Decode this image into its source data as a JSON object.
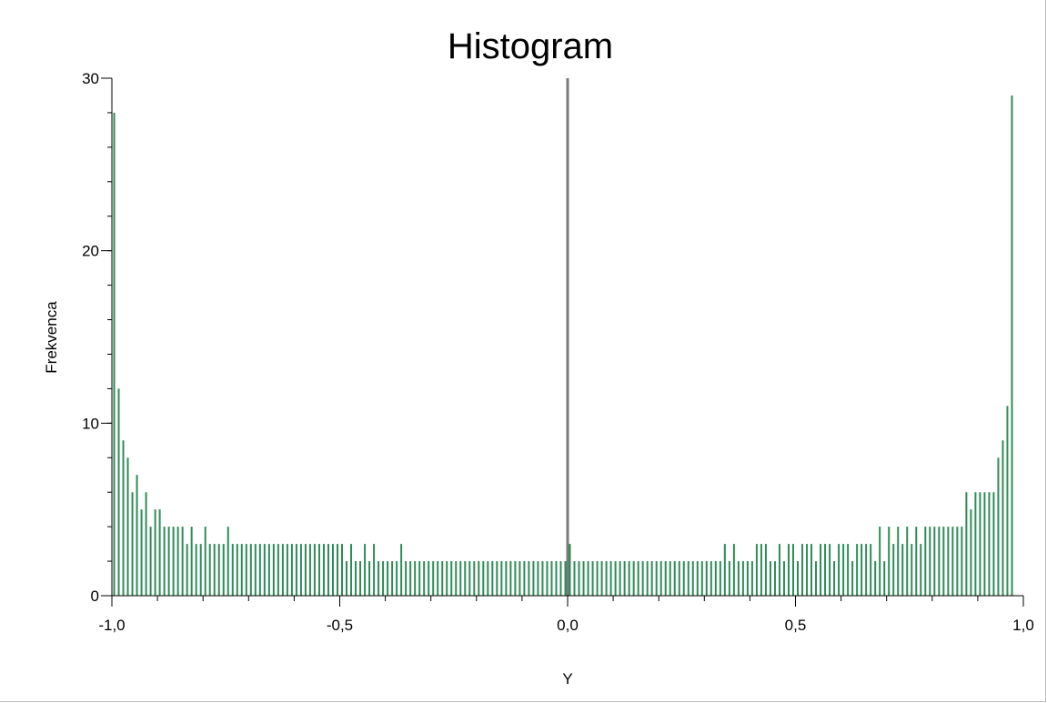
{
  "chart_data": {
    "type": "bar",
    "title": "Histogram",
    "xlabel": "Y",
    "ylabel": "Frekvenca",
    "xlim": [
      -1.0,
      1.0
    ],
    "ylim": [
      0,
      30
    ],
    "xticks": [
      {
        "value": -1.0,
        "label": "-1,0"
      },
      {
        "value": -0.5,
        "label": "-0,5"
      },
      {
        "value": 0.0,
        "label": "0,0"
      },
      {
        "value": 0.5,
        "label": "0,5"
      },
      {
        "value": 1.0,
        "label": "1,0"
      }
    ],
    "yticks": [
      {
        "value": 0,
        "label": "0"
      },
      {
        "value": 10,
        "label": "10"
      },
      {
        "value": 20,
        "label": "20"
      },
      {
        "value": 30,
        "label": "30"
      }
    ],
    "reference_line_x": 0.0,
    "grid": false,
    "bar_color": "#2e8b57",
    "bin_width": 0.01,
    "bin_centers_start": -0.995,
    "values": [
      28,
      12,
      9,
      8,
      6,
      7,
      5,
      6,
      4,
      5,
      5,
      4,
      4,
      4,
      4,
      4,
      3,
      4,
      3,
      3,
      4,
      3,
      3,
      3,
      3,
      4,
      3,
      3,
      3,
      3,
      3,
      3,
      3,
      3,
      3,
      3,
      3,
      3,
      3,
      3,
      3,
      3,
      3,
      3,
      3,
      3,
      3,
      3,
      3,
      3,
      3,
      2,
      3,
      2,
      2,
      3,
      2,
      3,
      2,
      2,
      2,
      2,
      2,
      3,
      2,
      2,
      2,
      2,
      2,
      2,
      2,
      2,
      2,
      2,
      2,
      2,
      2,
      2,
      2,
      2,
      2,
      2,
      2,
      2,
      2,
      2,
      2,
      2,
      2,
      2,
      2,
      2,
      2,
      2,
      2,
      2,
      2,
      2,
      2,
      2,
      3,
      2,
      2,
      2,
      2,
      2,
      2,
      2,
      2,
      2,
      2,
      2,
      2,
      2,
      2,
      2,
      2,
      2,
      2,
      2,
      2,
      2,
      2,
      2,
      2,
      2,
      2,
      2,
      2,
      2,
      2,
      2,
      2,
      2,
      3,
      2,
      3,
      2,
      2,
      2,
      2,
      3,
      3,
      3,
      2,
      2,
      3,
      2,
      3,
      3,
      2,
      3,
      3,
      3,
      2,
      3,
      3,
      3,
      2,
      3,
      3,
      3,
      2,
      3,
      3,
      3,
      3,
      2,
      4,
      2,
      4,
      3,
      4,
      3,
      4,
      3,
      4,
      3,
      4,
      4,
      4,
      4,
      4,
      4,
      4,
      4,
      4,
      6,
      5,
      6,
      6,
      6,
      6,
      6,
      8,
      9,
      11,
      29
    ]
  }
}
